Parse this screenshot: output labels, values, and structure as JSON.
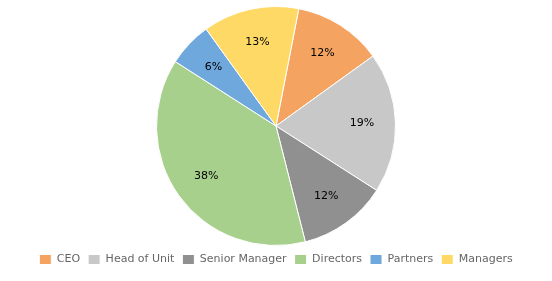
{
  "chart_data": {
    "type": "pie",
    "categories": [
      "CEO",
      "Head of Unit",
      "Senior Manager",
      "Directors",
      "Partners",
      "Managers"
    ],
    "values": [
      12,
      19,
      12,
      38,
      6,
      13
    ],
    "value_labels": [
      "12%",
      "19%",
      "12%",
      "38%",
      "6%",
      "13%"
    ],
    "colors": [
      "#F4A460",
      "#C8C8C8",
      "#909090",
      "#A8D08D",
      "#6FA8DC",
      "#FFD966"
    ],
    "data_labels": true,
    "legend": "bottom"
  }
}
